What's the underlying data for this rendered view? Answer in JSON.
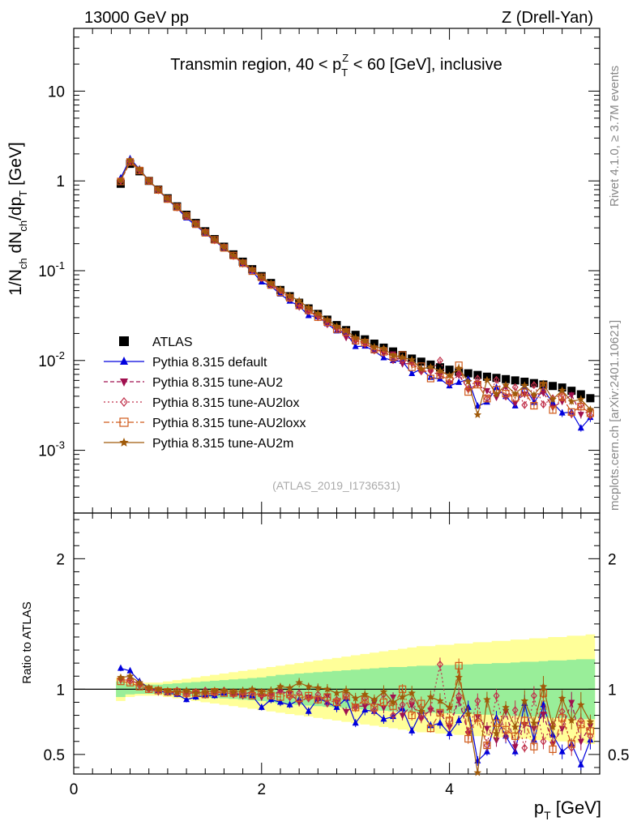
{
  "header": {
    "energy": "13000 GeV pp",
    "process": "Z (Drell-Yan)"
  },
  "side": {
    "rivet": "Rivet 4.1.0, ≥ 3.7M events",
    "mcplots": "mcplots.cern.ch [arXiv:2401.10621]"
  },
  "chart_data": {
    "type": "scatter",
    "title": "Transmin region, 40 < pTZ < 60 [GeV], inclusive",
    "xlabel": "pT [GeV]",
    "ylabel": "1/Nch dNch/dpT [GeV]",
    "ratio_ylabel": "Ratio to ATLAS",
    "analysis_id": "(ATLAS_2019_I1736531)",
    "xlim": [
      0,
      5.6
    ],
    "ylim": [
      0.0002,
      50
    ],
    "ratio_ylim": [
      0.35,
      2.35
    ],
    "x_ticks": [
      "0",
      "2",
      "4"
    ],
    "y_ticks": [
      "10^-3",
      "10^-2",
      "10^-1",
      "1",
      "10"
    ],
    "ratio_ticks": [
      "0.5",
      "1",
      "2"
    ],
    "reference": {
      "name": "ATLAS",
      "x": [
        0.5,
        0.6,
        0.7,
        0.8,
        0.9,
        1.0,
        1.1,
        1.2,
        1.3,
        1.4,
        1.5,
        1.6,
        1.7,
        1.8,
        1.9,
        2.0,
        2.1,
        2.2,
        2.3,
        2.4,
        2.5,
        2.6,
        2.7,
        2.8,
        2.9,
        3.0,
        3.1,
        3.2,
        3.3,
        3.4,
        3.5,
        3.6,
        3.7,
        3.8,
        3.9,
        4.0,
        4.1,
        4.2,
        4.3,
        4.4,
        4.5,
        4.6,
        4.7,
        4.8,
        4.9,
        5.0,
        5.1,
        5.2,
        5.3,
        5.4,
        5.5
      ],
      "values": [
        0.93,
        1.55,
        1.28,
        1.0,
        0.8,
        0.64,
        0.52,
        0.42,
        0.34,
        0.275,
        0.225,
        0.185,
        0.152,
        0.126,
        0.104,
        0.087,
        0.073,
        0.061,
        0.052,
        0.044,
        0.038,
        0.033,
        0.0285,
        0.0248,
        0.0218,
        0.0193,
        0.0172,
        0.0154,
        0.0139,
        0.0126,
        0.0115,
        0.0105,
        0.0097,
        0.009,
        0.0084,
        0.0079,
        0.0075,
        0.0072,
        0.0069,
        0.0066,
        0.0064,
        0.0062,
        0.006,
        0.0058,
        0.0056,
        0.0054,
        0.0052,
        0.005,
        0.0046,
        0.0042,
        0.0038
      ],
      "band_inner": [
        0.06,
        0.04,
        0.035,
        0.035,
        0.035,
        0.04,
        0.045,
        0.05,
        0.055,
        0.06,
        0.065,
        0.07,
        0.075,
        0.08,
        0.085,
        0.09,
        0.1,
        0.11,
        0.115,
        0.12,
        0.125,
        0.13,
        0.135,
        0.14,
        0.145,
        0.15,
        0.155,
        0.16,
        0.165,
        0.17,
        0.17,
        0.175,
        0.18,
        0.18,
        0.185,
        0.185,
        0.19,
        0.19,
        0.195,
        0.195,
        0.2,
        0.2,
        0.205,
        0.21,
        0.21,
        0.215,
        0.22,
        0.22,
        0.225,
        0.23,
        0.23
      ],
      "band_outer": [
        0.09,
        0.06,
        0.05,
        0.05,
        0.05,
        0.06,
        0.07,
        0.08,
        0.09,
        0.1,
        0.11,
        0.12,
        0.13,
        0.14,
        0.15,
        0.16,
        0.17,
        0.18,
        0.19,
        0.2,
        0.21,
        0.22,
        0.23,
        0.24,
        0.25,
        0.26,
        0.27,
        0.28,
        0.29,
        0.3,
        0.31,
        0.32,
        0.33,
        0.33,
        0.34,
        0.34,
        0.35,
        0.35,
        0.36,
        0.36,
        0.37,
        0.37,
        0.38,
        0.38,
        0.39,
        0.39,
        0.4,
        0.4,
        0.41,
        0.41,
        0.42
      ]
    },
    "series": [
      {
        "name": "Pythia 8.315 default",
        "color": "#0000dd",
        "marker": "triangle-up",
        "line": "solid",
        "ratio": [
          1.16,
          1.14,
          1.06,
          1.01,
          0.99,
          0.97,
          0.96,
          0.92,
          0.94,
          0.95,
          0.95,
          0.97,
          0.97,
          0.95,
          0.95,
          0.86,
          0.92,
          0.9,
          0.88,
          0.92,
          0.83,
          0.93,
          0.9,
          0.86,
          0.93,
          0.74,
          0.84,
          0.83,
          0.77,
          0.79,
          0.85,
          0.68,
          0.83,
          0.72,
          0.74,
          0.66,
          0.76,
          0.86,
          0.45,
          0.52,
          0.78,
          0.64,
          0.52,
          0.89,
          0.61,
          0.88,
          0.65,
          0.52,
          0.58,
          0.42,
          0.61
        ]
      },
      {
        "name": "Pythia 8.315 tune-AU2",
        "color": "#a0104f",
        "marker": "triangle-down",
        "line": "dashed",
        "ratio": [
          1.07,
          1.07,
          1.04,
          1.0,
          0.98,
          0.98,
          0.97,
          0.97,
          0.97,
          0.96,
          0.97,
          0.98,
          0.96,
          0.95,
          0.99,
          0.94,
          0.96,
          0.98,
          0.97,
          0.9,
          0.94,
          0.92,
          0.95,
          0.9,
          0.83,
          0.87,
          0.87,
          0.9,
          0.86,
          0.94,
          0.8,
          0.88,
          0.78,
          0.84,
          0.82,
          0.71,
          0.92,
          0.66,
          0.79,
          0.7,
          0.61,
          0.83,
          0.56,
          0.73,
          0.7,
          0.81,
          0.58,
          0.7,
          0.9,
          0.6,
          0.72
        ]
      },
      {
        "name": "Pythia 8.315 tune-AU2lox",
        "color": "#c0304a",
        "marker": "diamond",
        "line": "dotted",
        "ratio": [
          1.08,
          1.06,
          1.03,
          1.0,
          0.99,
          0.98,
          0.99,
          0.96,
          0.98,
          0.99,
          0.97,
          0.99,
          0.96,
          0.98,
          0.97,
          0.96,
          0.95,
          0.99,
          0.94,
          0.97,
          0.93,
          0.96,
          0.89,
          0.92,
          0.95,
          0.86,
          0.93,
          0.84,
          0.96,
          0.8,
          0.88,
          0.91,
          0.78,
          0.85,
          1.19,
          0.72,
          0.95,
          0.67,
          0.91,
          0.57,
          0.95,
          0.64,
          0.84,
          0.55,
          0.95,
          0.6,
          0.73,
          0.83,
          0.55,
          0.76,
          0.64
        ]
      },
      {
        "name": "Pythia 8.315 tune-AU2loxx",
        "color": "#d05a1a",
        "marker": "square-open",
        "line": "dashdot",
        "ratio": [
          1.06,
          1.05,
          1.02,
          1.0,
          0.99,
          0.98,
          0.98,
          0.97,
          0.97,
          0.96,
          0.98,
          0.97,
          0.97,
          0.96,
          0.95,
          0.97,
          0.95,
          0.94,
          0.96,
          0.93,
          0.95,
          0.92,
          0.94,
          0.9,
          0.95,
          0.86,
          0.92,
          0.86,
          0.9,
          0.87,
          1.0,
          0.8,
          0.89,
          0.7,
          0.82,
          0.76,
          1.18,
          0.62,
          0.78,
          0.57,
          0.74,
          0.69,
          0.64,
          0.76,
          0.56,
          0.97,
          0.54,
          0.78,
          0.58,
          0.73,
          0.68
        ]
      },
      {
        "name": "Pythia 8.315 tune-AU2m",
        "color": "#a05a0a",
        "marker": "star",
        "line": "solid",
        "ratio": [
          1.09,
          1.1,
          1.05,
          1.01,
          1.0,
          0.99,
          0.98,
          0.99,
          0.97,
          0.98,
          0.99,
          0.99,
          0.98,
          0.99,
          1.0,
          0.98,
          0.99,
          1.02,
          1.01,
          1.05,
          1.02,
          1.01,
          1.0,
          0.97,
          0.99,
          0.93,
          0.96,
          0.92,
          0.98,
          0.9,
          0.94,
          0.97,
          0.83,
          0.94,
          0.91,
          0.86,
          1.09,
          0.81,
          0.36,
          0.92,
          0.66,
          0.86,
          0.71,
          0.91,
          0.74,
          1.02,
          0.71,
          0.93,
          0.76,
          0.88,
          0.75
        ]
      }
    ],
    "legend_placement": "middle-left"
  }
}
